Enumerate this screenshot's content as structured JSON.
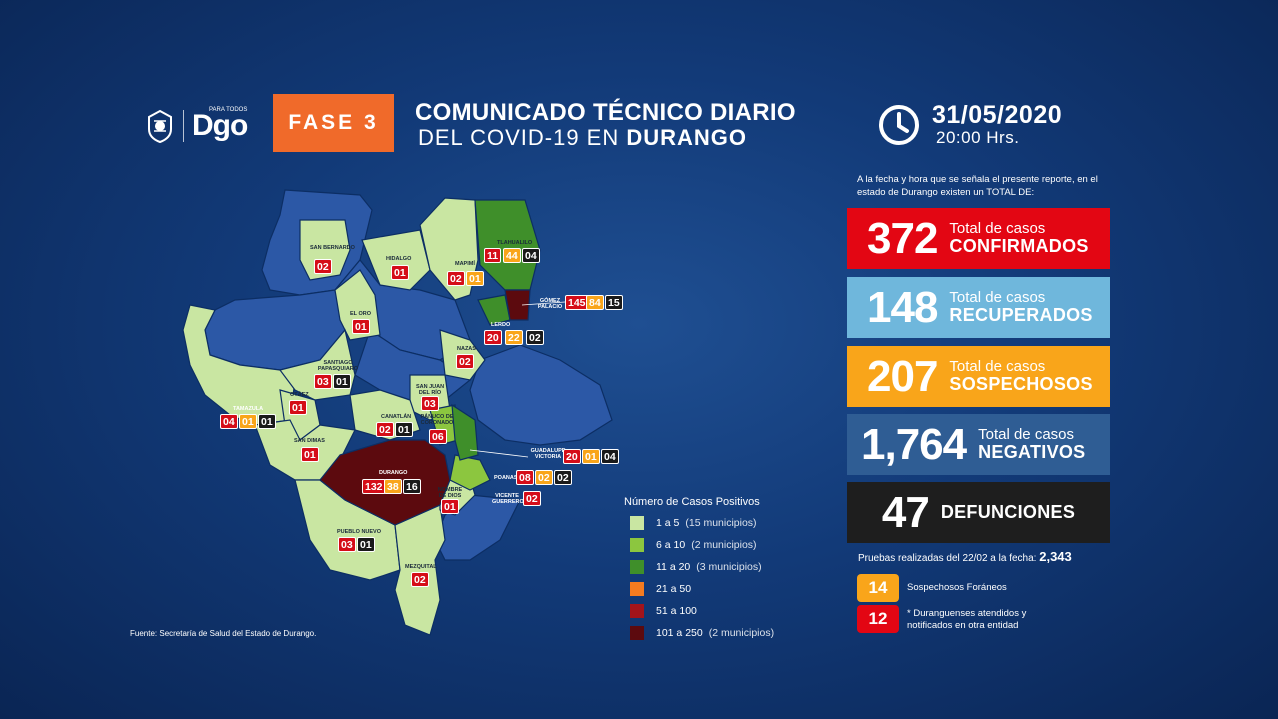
{
  "header": {
    "logo_text": "Dgo",
    "logo_sub": "PARA TODOS",
    "phase": "FASE 3",
    "title_line1": "COMUNICADO TÉCNICO DIARIO",
    "title_line2_pre": "DEL COVID-19 EN ",
    "title_line2_bold": "DURANGO",
    "date": "31/05/2020",
    "time": "20:00 Hrs."
  },
  "intro": "A la fecha y hora que se señala el presente reporte, en el estado de Durango existen un TOTAL DE:",
  "cards": [
    {
      "num": "372",
      "line1": "Total de casos",
      "line2": "CONFIRMADOS",
      "color": "#e30613"
    },
    {
      "num": "148",
      "line1": "Total de casos",
      "line2": "RECUPERADOS",
      "color": "#6fb7dc"
    },
    {
      "num": "207",
      "line1": "Total de casos",
      "line2": "SOSPECHOSOS",
      "color": "#f9a51a"
    },
    {
      "num": "1,764",
      "line1": "Total de casos",
      "line2": "NEGATIVOS",
      "color": "#2f5d94"
    },
    {
      "num": "47",
      "line1": "",
      "line2": "DEFUNCIONES",
      "color": "#1e1e1e"
    }
  ],
  "pruebas": {
    "label": "Pruebas realizadas del 22/02 a la fecha: ",
    "value": "2,343"
  },
  "extras": [
    {
      "num": "14",
      "label": "Sospechosos Foráneos",
      "color": "#f9a51a"
    },
    {
      "num": "12",
      "label": "* Duranguenses atendidos y notificados en otra entidad",
      "color": "#e30613"
    }
  ],
  "legend": {
    "title": "Número de Casos Positivos",
    "items": [
      {
        "range": "1 a 5",
        "note": "(15 municipios)",
        "color": "#c9e6a2"
      },
      {
        "range": "6 a 10",
        "note": "(2 municipios)",
        "color": "#8cc63f"
      },
      {
        "range": "11 a 20",
        "note": "(3 municipios)",
        "color": "#3f8f2a"
      },
      {
        "range": "21 a 50",
        "note": "",
        "color": "#f47b20"
      },
      {
        "range": "51 a 100",
        "note": "",
        "color": "#a3141b"
      },
      {
        "range": "101 a 250",
        "note": "(2 municipios)",
        "color": "#5c0a0e"
      }
    ]
  },
  "fuente": "Fuente: Secretaría de Salud del Estado de Durango.",
  "municipios": [
    {
      "name": "SAN BERNARDO",
      "cases": [
        "02"
      ]
    },
    {
      "name": "HIDALGO",
      "cases": [
        "01"
      ]
    },
    {
      "name": "MAPIMÍ",
      "cases": [
        "02",
        "01"
      ]
    },
    {
      "name": "TLAHUALILO",
      "cases": [
        "11",
        "44",
        "04"
      ]
    },
    {
      "name": "GÓMEZ PALACIO",
      "cases": [
        "145",
        "84",
        "15"
      ]
    },
    {
      "name": "LERDO",
      "cases": [
        "20",
        "22",
        "02"
      ]
    },
    {
      "name": "EL ORO",
      "cases": [
        "01"
      ]
    },
    {
      "name": "NAZAS",
      "cases": [
        "02"
      ]
    },
    {
      "name": "SANTIAGO PAPASQUIARO",
      "cases": [
        "03",
        "01"
      ]
    },
    {
      "name": "SAN JUAN DEL RÍO",
      "cases": [
        "03"
      ]
    },
    {
      "name": "OTÁEZ",
      "cases": [
        "01"
      ]
    },
    {
      "name": "TAMAZULA",
      "cases": [
        "04",
        "01",
        "01"
      ]
    },
    {
      "name": "CANATLÁN",
      "cases": [
        "02",
        "01"
      ]
    },
    {
      "name": "PÁNUCO DE CORONADO",
      "cases": [
        "06"
      ]
    },
    {
      "name": "GUADALUPE VICTORIA",
      "cases": [
        "20",
        "01",
        "04"
      ]
    },
    {
      "name": "SAN DIMAS",
      "cases": [
        "01"
      ]
    },
    {
      "name": "DURANGO",
      "cases": [
        "132",
        "38",
        "16"
      ]
    },
    {
      "name": "POANAS",
      "cases": [
        "08",
        "02",
        "02"
      ]
    },
    {
      "name": "NOMBRE DE DIOS",
      "cases": [
        "01"
      ]
    },
    {
      "name": "VICENTE GUERRERO",
      "cases": [
        "02"
      ]
    },
    {
      "name": "PUEBLO NUEVO",
      "cases": [
        "03",
        "01"
      ]
    },
    {
      "name": "MEZQUITAL",
      "cases": [
        "02"
      ]
    }
  ]
}
